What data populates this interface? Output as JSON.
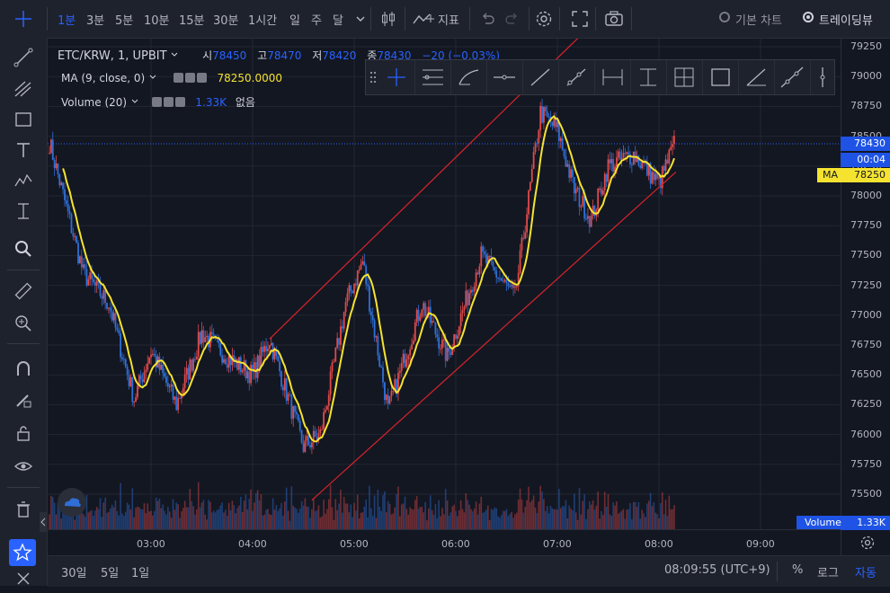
{
  "topbar": {
    "intervals": [
      "1분",
      "3분",
      "5분",
      "10분",
      "15분",
      "30분",
      "1시간",
      "일",
      "주",
      "달"
    ],
    "active_interval": "1분",
    "indicators_label": "지표",
    "view_basic_label": "기본 차트",
    "view_tradingview_label": "트레이딩뷰"
  },
  "legend": {
    "symbol": "ETC/KRW, 1, UPBIT",
    "open_label": "시",
    "open": "78450",
    "high_label": "고",
    "high": "78470",
    "low_label": "저",
    "low": "78420",
    "close_label": "종",
    "close": "78430",
    "change": "−20 (−0.03%)",
    "ma_label": "MA (9, close, 0)",
    "ma_value": "78250.0000",
    "volume_label": "Volume (20)",
    "volume_value": "1.33K",
    "volume_extra": "없음"
  },
  "price_axis": {
    "ticks": [
      "79250",
      "79000",
      "78750",
      "78500",
      "78250",
      "78000",
      "77750",
      "77500",
      "77250",
      "77000",
      "76750",
      "76500",
      "76250",
      "76000",
      "75750",
      "75500"
    ],
    "last_price": "78430",
    "countdown": "00:04",
    "ma_tag_label": "MA",
    "ma_tag_value": "78250",
    "volume_tag_label": "Volume",
    "volume_tag_value": "1.33K"
  },
  "time_axis": {
    "ticks": [
      "03:00",
      "04:00",
      "05:00",
      "06:00",
      "07:00",
      "08:00",
      "09:00"
    ]
  },
  "bottombar": {
    "ranges": [
      "30일",
      "5일",
      "1일"
    ],
    "clock": "08:09:55 (UTC+9)",
    "percent_label": "%",
    "log_label": "로그",
    "auto_label": "자동"
  },
  "colors": {
    "up": "#e04a4a",
    "down": "#2f6fd6",
    "ma": "#f5e330",
    "channel": "#d8232a",
    "accent": "#2962ff",
    "background": "#131722"
  },
  "chart_data": {
    "type": "candlestick",
    "symbol": "ETC/KRW",
    "interval": "1",
    "ylim": [
      75400,
      79300
    ],
    "x_ticks": [
      "03:00",
      "04:00",
      "05:00",
      "06:00",
      "07:00",
      "08:00",
      "09:00"
    ],
    "close_path": [
      {
        "t": "02:00",
        "v": 78450
      },
      {
        "t": "02:20",
        "v": 77350
      },
      {
        "t": "02:35",
        "v": 77100
      },
      {
        "t": "02:50",
        "v": 76300
      },
      {
        "t": "03:00",
        "v": 76700
      },
      {
        "t": "03:15",
        "v": 76250
      },
      {
        "t": "03:30",
        "v": 76850
      },
      {
        "t": "03:45",
        "v": 76650
      },
      {
        "t": "04:00",
        "v": 76500
      },
      {
        "t": "04:10",
        "v": 76800
      },
      {
        "t": "04:30",
        "v": 75900
      },
      {
        "t": "04:40",
        "v": 76000
      },
      {
        "t": "04:55",
        "v": 77100
      },
      {
        "t": "05:05",
        "v": 77450
      },
      {
        "t": "05:20",
        "v": 76200
      },
      {
        "t": "05:40",
        "v": 77100
      },
      {
        "t": "05:55",
        "v": 76650
      },
      {
        "t": "06:15",
        "v": 77500
      },
      {
        "t": "06:35",
        "v": 77150
      },
      {
        "t": "06:50",
        "v": 78700
      },
      {
        "t": "07:00",
        "v": 78550
      },
      {
        "t": "07:10",
        "v": 78050
      },
      {
        "t": "07:20",
        "v": 77800
      },
      {
        "t": "07:30",
        "v": 78250
      },
      {
        "t": "07:45",
        "v": 78350
      },
      {
        "t": "08:00",
        "v": 78100
      },
      {
        "t": "08:09",
        "v": 78430
      }
    ],
    "ma": {
      "name": "MA (9, close, 0)",
      "last": 78250
    },
    "volume_last": 1330,
    "channel": {
      "upper": [
        {
          "t": "04:10",
          "v": 76800
        },
        {
          "t": "07:25",
          "v": 79500
        }
      ],
      "lower": [
        {
          "t": "04:35",
          "v": 75450
        },
        {
          "t": "08:10",
          "v": 78200
        }
      ]
    }
  }
}
